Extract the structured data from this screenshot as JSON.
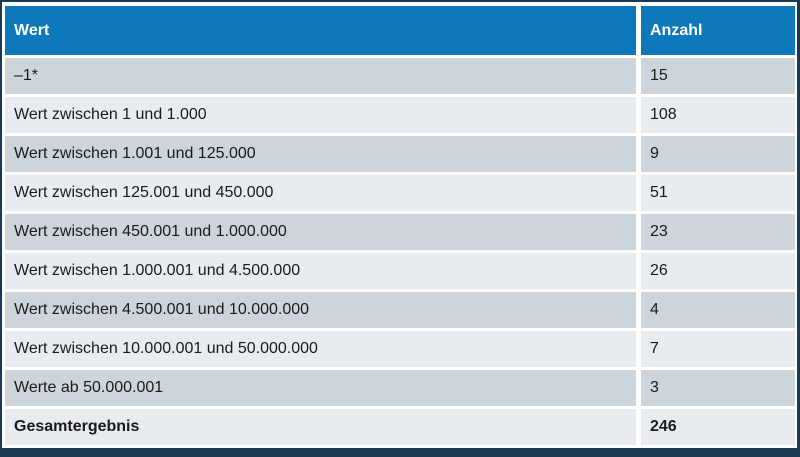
{
  "table": {
    "columns": [
      {
        "label": "Wert"
      },
      {
        "label": "Anzahl"
      }
    ],
    "rows": [
      {
        "wert": "–1*",
        "anzahl": "15"
      },
      {
        "wert": "Wert zwischen 1 und 1.000",
        "anzahl": "108"
      },
      {
        "wert": "Wert zwischen 1.001 und 125.000",
        "anzahl": "9"
      },
      {
        "wert": "Wert zwischen 125.001 und 450.000",
        "anzahl": "51"
      },
      {
        "wert": "Wert zwischen 450.001 und 1.000.000",
        "anzahl": "23"
      },
      {
        "wert": "Wert zwischen 1.000.001 und 4.500.000",
        "anzahl": "26"
      },
      {
        "wert": "Wert zwischen 4.500.001 und 10.000.000",
        "anzahl": "4"
      },
      {
        "wert": "Wert zwischen 10.000.001 und 50.000.000",
        "anzahl": "7"
      },
      {
        "wert": "Werte ab 50.000.001",
        "anzahl": "3"
      }
    ],
    "total_row": {
      "wert": "Gesamtergebnis",
      "anzahl": "246"
    }
  },
  "chart_data": {
    "type": "table",
    "title": "",
    "columns": [
      "Wert",
      "Anzahl"
    ],
    "rows": [
      [
        "–1*",
        15
      ],
      [
        "Wert zwischen 1 und 1.000",
        108
      ],
      [
        "Wert zwischen 1.001 und 125.000",
        9
      ],
      [
        "Wert zwischen 125.001 und 450.000",
        51
      ],
      [
        "Wert zwischen 450.001 und 1.000.000",
        23
      ],
      [
        "Wert zwischen 1.000.001 und 4.500.000",
        26
      ],
      [
        "Wert zwischen 4.500.001 und 10.000.000",
        4
      ],
      [
        "Wert zwischen 10.000.001 und 50.000.000",
        7
      ],
      [
        "Werte ab 50.000.001",
        3
      ],
      [
        "Gesamtergebnis",
        246
      ]
    ]
  },
  "colors": {
    "header_bg": "#0d78ba",
    "header_text": "#ffffff",
    "row_dark": "#ccd4dc",
    "row_light": "#e8ecf0",
    "frame_border": "#1b3955",
    "text": "#1a1a1a"
  }
}
